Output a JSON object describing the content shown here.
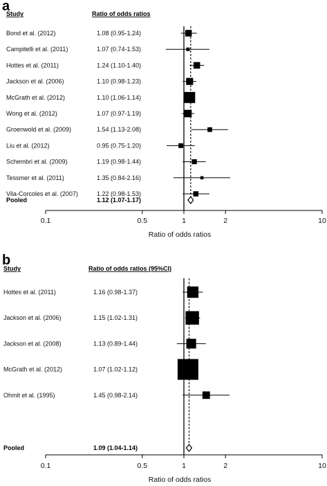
{
  "chart_data": [
    {
      "type": "forest",
      "panel_label": "a",
      "header_study": "Study",
      "header_estimate": "Ratio of odds ratios",
      "xlabel": "Ratio of odds ratios",
      "x_scale": "log",
      "xlim": [
        0.1,
        10
      ],
      "xticks": [
        "0.1",
        "0.5",
        "1",
        "2",
        "10"
      ],
      "xtick_values": [
        0.1,
        0.5,
        1,
        2,
        10
      ],
      "reference_line": 1,
      "pooled_line": 1.12,
      "studies": [
        {
          "name": "Bond et al. (2012)",
          "estimate_text": "1.08 (0.95-1.24)",
          "est": 1.08,
          "lo": 0.95,
          "hi": 1.24,
          "weight": 0.35
        },
        {
          "name": "Campitelli et al. (2011)",
          "estimate_text": "1.07 (0.74-1.53)",
          "est": 1.07,
          "lo": 0.74,
          "hi": 1.53,
          "weight": 0.1
        },
        {
          "name": "Hottes et al. (2011)",
          "estimate_text": "1.24 (1.10-1.40)",
          "est": 1.24,
          "lo": 1.1,
          "hi": 1.4,
          "weight": 0.35
        },
        {
          "name": "Jackson et al. (2006)",
          "estimate_text": "1.10 (0.98-1.23)",
          "est": 1.1,
          "lo": 0.98,
          "hi": 1.23,
          "weight": 0.4
        },
        {
          "name": "McGrath et al. (2012)",
          "estimate_text": "1.10 (1.06-1.14)",
          "est": 1.1,
          "lo": 1.06,
          "hi": 1.14,
          "weight": 1.0
        },
        {
          "name": "Wong et al. (2012)",
          "estimate_text": "1.07 (0.97-1.19)",
          "est": 1.07,
          "lo": 0.97,
          "hi": 1.19,
          "weight": 0.45
        },
        {
          "name": "Groenwold et al. (2009)",
          "estimate_text": "1.54 (1.13-2.08)",
          "est": 1.54,
          "lo": 1.13,
          "hi": 2.08,
          "weight": 0.18
        },
        {
          "name": "Liu et al. (2012)",
          "estimate_text": "0.95 (0.75-1.20)",
          "est": 0.95,
          "lo": 0.75,
          "hi": 1.2,
          "weight": 0.18
        },
        {
          "name": "Schembri et al. (2009)",
          "estimate_text": "1.19 (0.98-1.44)",
          "est": 1.19,
          "lo": 0.98,
          "hi": 1.44,
          "weight": 0.2
        },
        {
          "name": "Tessmer et al. (2011)",
          "estimate_text": "1.35 (0.84-2.16)",
          "est": 1.35,
          "lo": 0.84,
          "hi": 2.16,
          "weight": 0.08
        },
        {
          "name": "Vila-Corcoles et al. (2007)",
          "estimate_text": "1.22 (0.98-1.53)",
          "est": 1.22,
          "lo": 0.98,
          "hi": 1.53,
          "weight": 0.22
        }
      ],
      "pooled": {
        "name": "Pooled",
        "estimate_text": "1.12 (1.07-1.17)",
        "est": 1.12,
        "lo": 1.07,
        "hi": 1.17
      }
    },
    {
      "type": "forest",
      "panel_label": "b",
      "header_study": "Study",
      "header_estimate": "Ratio of odds ratios (95%CI)",
      "xlabel": "Ratio of odds ratios",
      "x_scale": "log",
      "xlim": [
        0.1,
        10
      ],
      "xticks": [
        "0.1",
        "0.5",
        "1",
        "2",
        "10"
      ],
      "xtick_values": [
        0.1,
        0.5,
        1,
        2,
        10
      ],
      "reference_line": 1,
      "pooled_line": 1.09,
      "studies": [
        {
          "name": "Hottes et al. (2011)",
          "estimate_text": "1.16 (0.98-1.37)",
          "est": 1.16,
          "lo": 0.98,
          "hi": 1.37,
          "weight": 0.3
        },
        {
          "name": "Jackson et al. (2006)",
          "estimate_text": "1.15 (1.02-1.31)",
          "est": 1.15,
          "lo": 1.02,
          "hi": 1.31,
          "weight": 0.42
        },
        {
          "name": "Jackson et al. (2008)",
          "estimate_text": "1.13 (0.89-1.44)",
          "est": 1.13,
          "lo": 0.89,
          "hi": 1.44,
          "weight": 0.22
        },
        {
          "name": "McGrath et al. (2012)",
          "estimate_text": "1.07 (1.02-1.12)",
          "est": 1.07,
          "lo": 1.02,
          "hi": 1.12,
          "weight": 1.0
        },
        {
          "name": "Ohmit et al. (1995)",
          "estimate_text": "1.45 (0.98-2.14)",
          "est": 1.45,
          "lo": 0.98,
          "hi": 2.14,
          "weight": 0.13
        }
      ],
      "pooled": {
        "name": "Pooled",
        "estimate_text": "1.09 (1.04-1.14)",
        "est": 1.09,
        "lo": 1.04,
        "hi": 1.14
      }
    }
  ]
}
